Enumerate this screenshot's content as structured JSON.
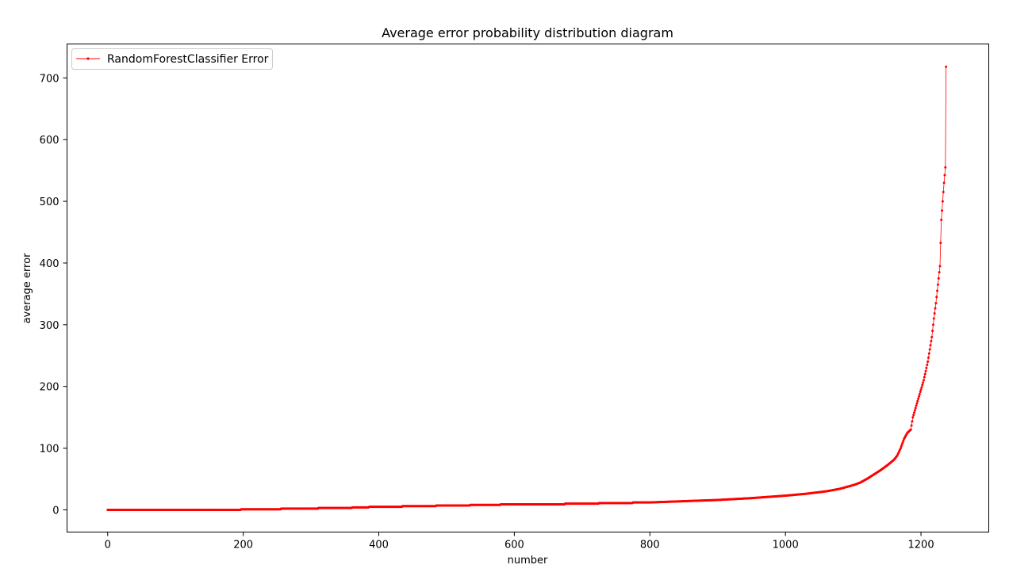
{
  "chart_data": {
    "type": "line",
    "title": "Average error probability distribution diagram",
    "xlabel": "number",
    "ylabel": "average error",
    "xlim": [
      -60,
      1300
    ],
    "ylim": [
      -36,
      755
    ],
    "x_ticks": [
      0,
      200,
      400,
      600,
      800,
      1000,
      1200
    ],
    "y_ticks": [
      0,
      100,
      200,
      300,
      400,
      500,
      600,
      700
    ],
    "grid": false,
    "legend_position": "top-left",
    "series": [
      {
        "name": "RandomForestClassifier Error",
        "color": "#ff0000",
        "marker": "dot",
        "points": [
          [
            0,
            0
          ],
          [
            50,
            0
          ],
          [
            100,
            0
          ],
          [
            150,
            0
          ],
          [
            196,
            0
          ],
          [
            197,
            1
          ],
          [
            255,
            1
          ],
          [
            256,
            2
          ],
          [
            310,
            2
          ],
          [
            311,
            3
          ],
          [
            360,
            3
          ],
          [
            361,
            4
          ],
          [
            410,
            5
          ],
          [
            460,
            6
          ],
          [
            510,
            7
          ],
          [
            560,
            8
          ],
          [
            600,
            9
          ],
          [
            650,
            9
          ],
          [
            700,
            10
          ],
          [
            750,
            11
          ],
          [
            800,
            12
          ],
          [
            850,
            14
          ],
          [
            900,
            16
          ],
          [
            950,
            19
          ],
          [
            1000,
            23
          ],
          [
            1030,
            26
          ],
          [
            1060,
            30
          ],
          [
            1080,
            34
          ],
          [
            1100,
            40
          ],
          [
            1110,
            44
          ],
          [
            1120,
            50
          ],
          [
            1130,
            57
          ],
          [
            1140,
            64
          ],
          [
            1150,
            72
          ],
          [
            1160,
            81
          ],
          [
            1165,
            88
          ],
          [
            1170,
            100
          ],
          [
            1175,
            115
          ],
          [
            1180,
            125
          ],
          [
            1185,
            130
          ],
          [
            1188,
            150
          ],
          [
            1192,
            165
          ],
          [
            1196,
            180
          ],
          [
            1200,
            195
          ],
          [
            1204,
            210
          ],
          [
            1207,
            225
          ],
          [
            1210,
            240
          ],
          [
            1213,
            260
          ],
          [
            1216,
            280
          ],
          [
            1219,
            310
          ],
          [
            1222,
            335
          ],
          [
            1225,
            365
          ],
          [
            1228,
            395
          ],
          [
            1230,
            470
          ],
          [
            1232,
            500
          ],
          [
            1234,
            530
          ],
          [
            1236,
            555
          ],
          [
            1237,
            718
          ]
        ]
      }
    ]
  }
}
